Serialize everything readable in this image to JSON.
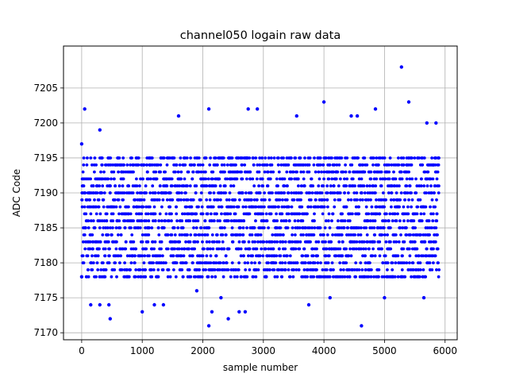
{
  "chart_data": {
    "type": "scatter",
    "title": "channel050 logain raw data",
    "xlabel": "sample number",
    "ylabel": "ADC Code",
    "xlim": [
      -300,
      6200
    ],
    "ylim": [
      7169,
      7211
    ],
    "xticks": [
      0,
      1000,
      2000,
      3000,
      4000,
      5000,
      6000
    ],
    "yticks": [
      7170,
      7175,
      7180,
      7185,
      7190,
      7195,
      7200,
      7205
    ],
    "grid": true,
    "marker_color": "#0000ff",
    "series": [
      {
        "n_samples": 5900,
        "band_min": 7178,
        "band_max": 7195,
        "points": [
          {
            "x": 50,
            "y": 7202
          },
          {
            "x": 0,
            "y": 7197
          },
          {
            "x": 0,
            "y": 7178
          },
          {
            "x": 300,
            "y": 7199
          },
          {
            "x": 150,
            "y": 7174
          },
          {
            "x": 300,
            "y": 7174
          },
          {
            "x": 450,
            "y": 7174
          },
          {
            "x": 470,
            "y": 7172
          },
          {
            "x": 1000,
            "y": 7173
          },
          {
            "x": 1200,
            "y": 7174
          },
          {
            "x": 1350,
            "y": 7174
          },
          {
            "x": 1600,
            "y": 7201
          },
          {
            "x": 1900,
            "y": 7176
          },
          {
            "x": 2100,
            "y": 7202
          },
          {
            "x": 2100,
            "y": 7171
          },
          {
            "x": 2150,
            "y": 7173
          },
          {
            "x": 2300,
            "y": 7175
          },
          {
            "x": 2420,
            "y": 7172
          },
          {
            "x": 2600,
            "y": 7173
          },
          {
            "x": 2700,
            "y": 7173
          },
          {
            "x": 2750,
            "y": 7202
          },
          {
            "x": 2900,
            "y": 7202
          },
          {
            "x": 3550,
            "y": 7201
          },
          {
            "x": 3750,
            "y": 7174
          },
          {
            "x": 4000,
            "y": 7203
          },
          {
            "x": 4100,
            "y": 7175
          },
          {
            "x": 4450,
            "y": 7201
          },
          {
            "x": 4550,
            "y": 7201
          },
          {
            "x": 4620,
            "y": 7171
          },
          {
            "x": 4850,
            "y": 7202
          },
          {
            "x": 5000,
            "y": 7175
          },
          {
            "x": 5280,
            "y": 7208
          },
          {
            "x": 5400,
            "y": 7203
          },
          {
            "x": 5650,
            "y": 7175
          },
          {
            "x": 5700,
            "y": 7200
          },
          {
            "x": 5850,
            "y": 7200
          }
        ]
      }
    ]
  }
}
